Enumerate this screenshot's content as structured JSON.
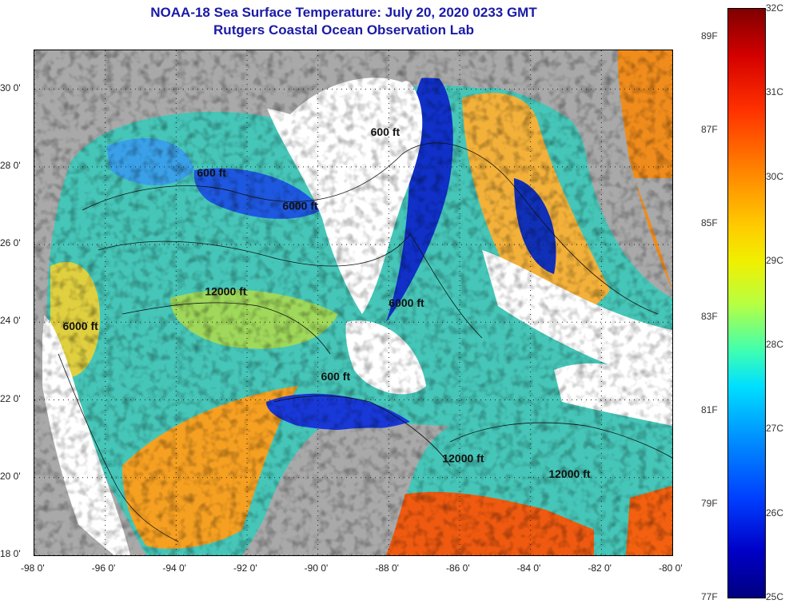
{
  "header": {
    "title": "NOAA-18 Sea Surface Temperature:  July 20, 2020 0233 GMT",
    "subtitle": "Rutgers Coastal Ocean Observation Lab"
  },
  "axes": {
    "lat_ticks": [
      {
        "value": 30,
        "label": "30 0'"
      },
      {
        "value": 28,
        "label": "28 0'"
      },
      {
        "value": 26,
        "label": "26 0'"
      },
      {
        "value": 24,
        "label": "24 0'"
      },
      {
        "value": 22,
        "label": "22 0'"
      },
      {
        "value": 20,
        "label": "20 0'"
      },
      {
        "value": 18,
        "label": "18 0'"
      }
    ],
    "lon_ticks": [
      {
        "value": -98,
        "label": "-98 0'"
      },
      {
        "value": -96,
        "label": "-96 0'"
      },
      {
        "value": -94,
        "label": "-94 0'"
      },
      {
        "value": -92,
        "label": "-92 0'"
      },
      {
        "value": -90,
        "label": "-90 0'"
      },
      {
        "value": -88,
        "label": "-88 0'"
      },
      {
        "value": -86,
        "label": "-86 0'"
      },
      {
        "value": -84,
        "label": "-84 0'"
      },
      {
        "value": -82,
        "label": "-82 0'"
      },
      {
        "value": -80,
        "label": "-80 0'"
      }
    ],
    "lon_range": [
      -98,
      -80
    ],
    "lat_range": [
      18,
      31
    ]
  },
  "contours": [
    {
      "id": "c600a",
      "text": "600 ft",
      "lon": -93.0,
      "lat": 27.75
    },
    {
      "id": "c600b",
      "text": "600 ft",
      "lon": -88.1,
      "lat": 28.8
    },
    {
      "id": "c6000a",
      "text": "6000 ft",
      "lon": -90.5,
      "lat": 26.9
    },
    {
      "id": "c12000a",
      "text": "12000 ft",
      "lon": -92.6,
      "lat": 24.7
    },
    {
      "id": "c6000b",
      "text": "6000 ft",
      "lon": -96.7,
      "lat": 23.8
    },
    {
      "id": "c6000c",
      "text": "6000 ft",
      "lon": -87.5,
      "lat": 24.4
    },
    {
      "id": "c600c",
      "text": "600 ft",
      "lon": -89.5,
      "lat": 22.5
    },
    {
      "id": "c12000b",
      "text": "12000 ft",
      "lon": -85.9,
      "lat": 20.4
    },
    {
      "id": "c12000c",
      "text": "12000 ft",
      "lon": -82.9,
      "lat": 20.0
    }
  ],
  "colorbar": {
    "celsius": [
      "32C",
      "31C",
      "30C",
      "29C",
      "28C",
      "27C",
      "26C",
      "25C"
    ],
    "fahrenheit": [
      "89F",
      "87F",
      "85F",
      "83F",
      "81F",
      "79F",
      "77F"
    ],
    "celsius_range": [
      25,
      32
    ],
    "colors": {
      "low": "#000080",
      "high": "#800000",
      "land": "#a9a9a9",
      "cloud": "#ffffff"
    }
  }
}
